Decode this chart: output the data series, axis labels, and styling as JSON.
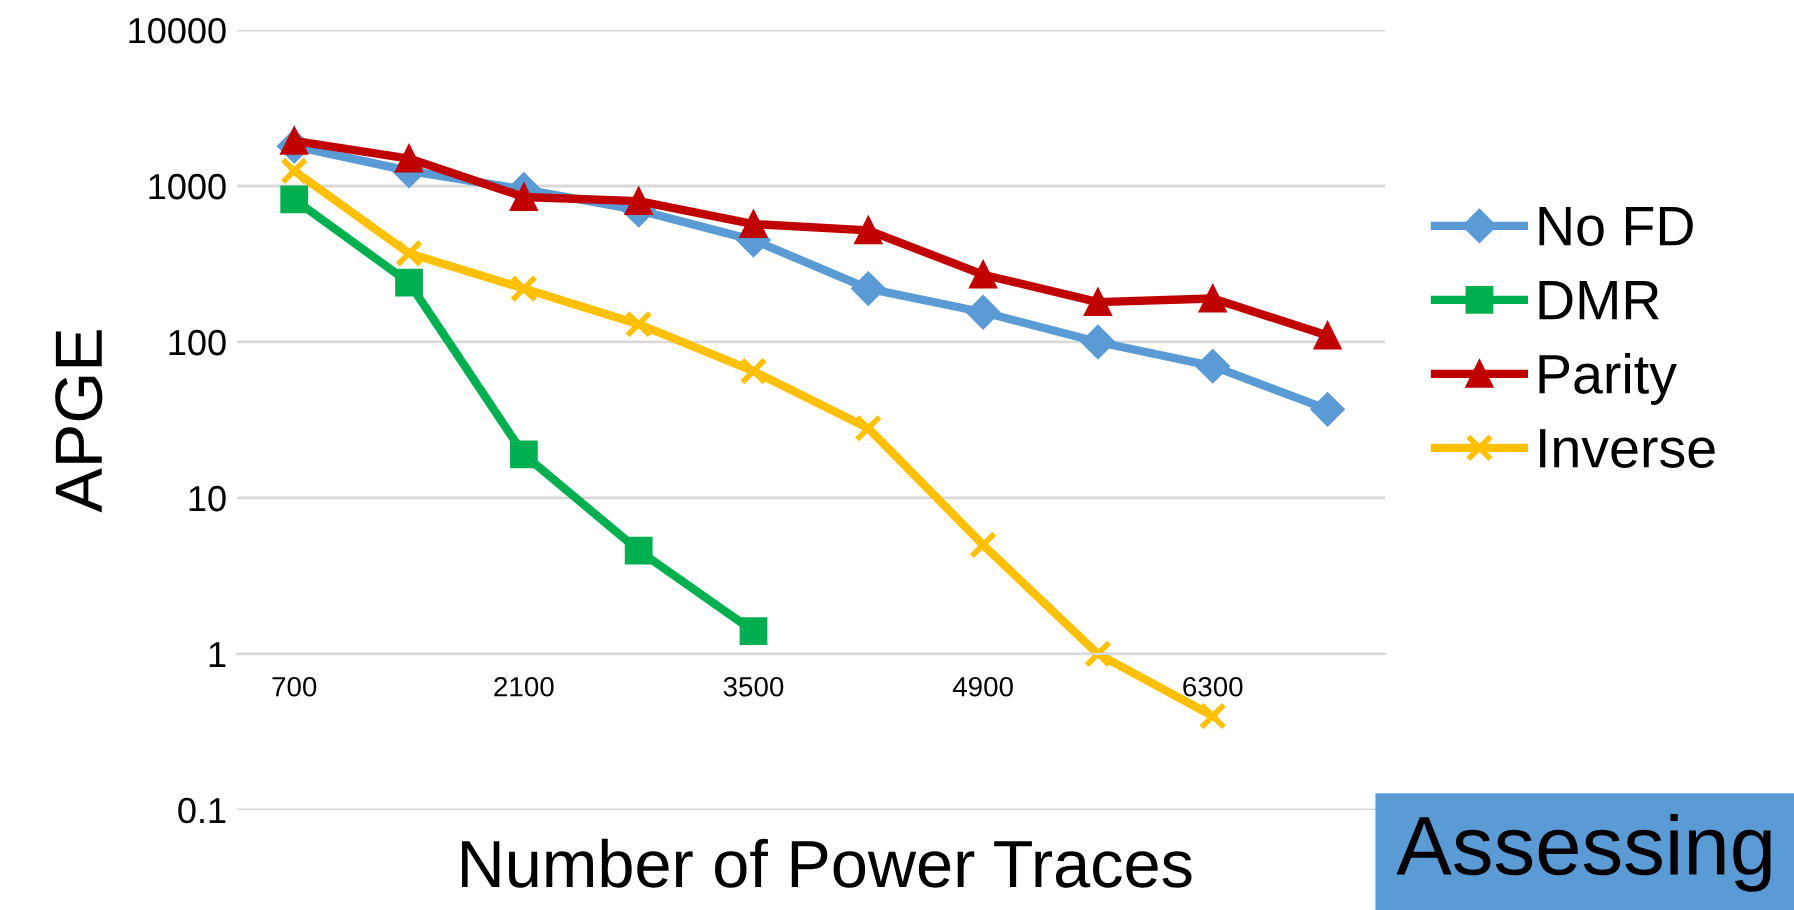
{
  "chart_data": {
    "type": "line",
    "xlabel": "Number of Power Traces",
    "ylabel": "APGE",
    "categories": [
      "700",
      null,
      "2100",
      null,
      "3500",
      null,
      "4900",
      null,
      "6300",
      null
    ],
    "series": [
      {
        "name": "No FD",
        "color": "#5b9bd5",
        "marker": "diamond",
        "values": [
          1800,
          1250,
          950,
          700,
          450,
          220,
          155,
          100,
          70,
          37
        ]
      },
      {
        "name": "DMR",
        "color": "#00b050",
        "marker": "square",
        "values": [
          820,
          240,
          19,
          4.6,
          1.4,
          null,
          null,
          null,
          null,
          null
        ]
      },
      {
        "name": "Parity",
        "color": "#c00000",
        "marker": "triangle",
        "values": [
          1950,
          1500,
          850,
          800,
          570,
          520,
          270,
          180,
          190,
          110
        ]
      },
      {
        "name": "Inverse",
        "color": "#ffc000",
        "marker": "cross",
        "values": [
          1250,
          370,
          220,
          130,
          65,
          28,
          5,
          1.0,
          0.4,
          null
        ]
      }
    ],
    "log": true,
    "ylim": [
      0.1,
      10000
    ],
    "yticks": [
      0.1,
      1,
      10,
      100,
      1000,
      10000
    ],
    "grid": "y",
    "legend": "right",
    "annotations": [
      "Assessing"
    ]
  }
}
